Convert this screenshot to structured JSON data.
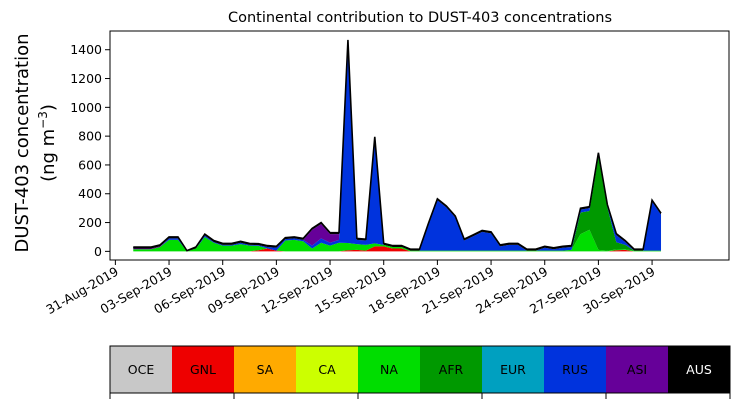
{
  "chart_data": {
    "type": "area",
    "title": "Continental contribution to DUST-403 concentrations",
    "ylabel_line1": "DUST-403 concentration",
    "ylabel_line2_base": "(ng m",
    "ylabel_line2_exp": "−3",
    "ylabel_line2_close": ")",
    "xlabel": "",
    "ylim": [
      -60,
      1530
    ],
    "xlim": [
      -1.3,
      33.3
    ],
    "x_origin": "01-Sep-2019",
    "x_unit": "day",
    "yticks": [
      0,
      200,
      400,
      600,
      800,
      1000,
      1200,
      1400
    ],
    "xticks": [
      {
        "x": -1,
        "label": "31-Aug-2019"
      },
      {
        "x": 2,
        "label": "03-Sep-2019"
      },
      {
        "x": 5,
        "label": "06-Sep-2019"
      },
      {
        "x": 8,
        "label": "09-Sep-2019"
      },
      {
        "x": 11,
        "label": "12-Sep-2019"
      },
      {
        "x": 14,
        "label": "15-Sep-2019"
      },
      {
        "x": 17,
        "label": "18-Sep-2019"
      },
      {
        "x": 20,
        "label": "21-Sep-2019"
      },
      {
        "x": 23,
        "label": "24-Sep-2019"
      },
      {
        "x": 26,
        "label": "27-Sep-2019"
      },
      {
        "x": 29,
        "label": "30-Sep-2019"
      }
    ],
    "grid": false,
    "stacked": true,
    "x": [
      0,
      0.5,
      1,
      1.5,
      2,
      2.5,
      3,
      3.5,
      4,
      4.5,
      5,
      5.5,
      6,
      6.5,
      7,
      7.5,
      8,
      8.5,
      9,
      9.5,
      10,
      10.5,
      11,
      11.5,
      12,
      12.5,
      13,
      13.5,
      14,
      14.5,
      15,
      15.5,
      16,
      16.5,
      17,
      17.5,
      18,
      18.5,
      19,
      19.5,
      20,
      20.5,
      21,
      21.5,
      22,
      22.5,
      23,
      23.5,
      24,
      24.5,
      25,
      25.5,
      26,
      26.5,
      27,
      27.5,
      28,
      28.5,
      29,
      29.5
    ],
    "series": [
      {
        "name": "GNL",
        "values": [
          0,
          0,
          0,
          0,
          0,
          0,
          0,
          0,
          0,
          0,
          0,
          0,
          0,
          0,
          8,
          20,
          5,
          0,
          0,
          0,
          0,
          0,
          0,
          0,
          8,
          10,
          5,
          35,
          35,
          20,
          20,
          0,
          0,
          0,
          0,
          0,
          0,
          0,
          0,
          0,
          0,
          0,
          0,
          0,
          0,
          0,
          0,
          0,
          0,
          0,
          0,
          0,
          0,
          0,
          8,
          10,
          0,
          0,
          0,
          0
        ]
      },
      {
        "name": "NA",
        "values": [
          15,
          15,
          15,
          30,
          80,
          80,
          0,
          20,
          100,
          60,
          40,
          40,
          50,
          40,
          30,
          0,
          0,
          75,
          80,
          70,
          20,
          60,
          40,
          60,
          50,
          40,
          40,
          20,
          10,
          10,
          10,
          5,
          5,
          5,
          5,
          5,
          5,
          5,
          5,
          5,
          5,
          5,
          5,
          5,
          5,
          5,
          5,
          5,
          5,
          10,
          120,
          150,
          10,
          5,
          5,
          5,
          5,
          5,
          5,
          5
        ]
      },
      {
        "name": "AFR",
        "values": [
          0,
          0,
          0,
          0,
          0,
          0,
          0,
          0,
          0,
          0,
          0,
          0,
          0,
          0,
          0,
          0,
          0,
          0,
          0,
          0,
          0,
          0,
          0,
          0,
          0,
          0,
          0,
          0,
          0,
          0,
          0,
          0,
          0,
          0,
          0,
          0,
          0,
          0,
          0,
          0,
          0,
          0,
          0,
          0,
          0,
          0,
          0,
          0,
          0,
          0,
          150,
          130,
          650,
          300,
          50,
          30,
          0,
          0,
          0,
          0
        ]
      },
      {
        "name": "RUS",
        "values": [
          0,
          0,
          0,
          0,
          10,
          10,
          0,
          0,
          10,
          5,
          5,
          5,
          10,
          5,
          5,
          10,
          20,
          10,
          10,
          10,
          20,
          30,
          20,
          20,
          1400,
          30,
          30,
          730,
          0,
          0,
          0,
          0,
          0,
          180,
          350,
          300,
          230,
          70,
          100,
          130,
          120,
          30,
          40,
          40,
          0,
          0,
          20,
          10,
          20,
          20,
          20,
          20,
          15,
          10,
          50,
          20,
          0,
          0,
          340,
          250
        ]
      },
      {
        "name": "ASI",
        "values": [
          5,
          5,
          5,
          5,
          0,
          0,
          0,
          0,
          0,
          0,
          0,
          0,
          0,
          0,
          0,
          0,
          0,
          0,
          0,
          0,
          110,
          100,
          60,
          40,
          0,
          0,
          0,
          0,
          0,
          0,
          0,
          0,
          0,
          0,
          0,
          0,
          0,
          0,
          0,
          0,
          0,
          0,
          0,
          0,
          0,
          0,
          0,
          0,
          0,
          0,
          0,
          0,
          0,
          0,
          0,
          0,
          0,
          0,
          0,
          0
        ]
      },
      {
        "name": "AUS",
        "values": [
          10,
          10,
          10,
          10,
          10,
          10,
          5,
          10,
          10,
          10,
          10,
          10,
          10,
          10,
          10,
          10,
          10,
          10,
          10,
          10,
          10,
          10,
          10,
          10,
          10,
          10,
          10,
          10,
          10,
          10,
          10,
          10,
          10,
          10,
          10,
          10,
          10,
          10,
          10,
          10,
          10,
          10,
          10,
          10,
          10,
          10,
          10,
          10,
          10,
          10,
          10,
          10,
          10,
          10,
          10,
          10,
          10,
          10,
          10,
          10
        ]
      }
    ],
    "legend": {
      "placement": "bottom",
      "entries": [
        {
          "label": "OCE",
          "color": "#c8c8c8",
          "text_color": "#000000"
        },
        {
          "label": "GNL",
          "color": "#ee0000",
          "text_color": "#000000"
        },
        {
          "label": "SA",
          "color": "#ffaa00",
          "text_color": "#000000"
        },
        {
          "label": "CA",
          "color": "#ccff00",
          "text_color": "#000000"
        },
        {
          "label": "NA",
          "color": "#00dd00",
          "text_color": "#000000"
        },
        {
          "label": "AFR",
          "color": "#009900",
          "text_color": "#000000"
        },
        {
          "label": "EUR",
          "color": "#00a0c0",
          "text_color": "#000000"
        },
        {
          "label": "RUS",
          "color": "#0033dd",
          "text_color": "#000000"
        },
        {
          "label": "ASI",
          "color": "#660099",
          "text_color": "#000000"
        },
        {
          "label": "AUS",
          "color": "#000000",
          "text_color": "#ffffff"
        }
      ]
    }
  }
}
